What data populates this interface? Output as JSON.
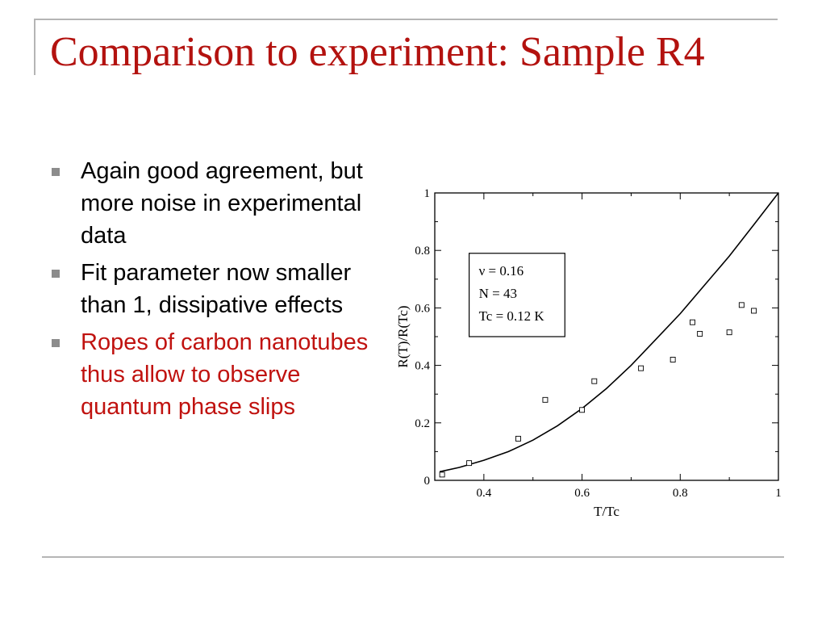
{
  "slide": {
    "title": "Comparison to experiment: Sample R4",
    "bullets": [
      {
        "text": "Again good agreement, but more noise in experimental data",
        "color": "#000000"
      },
      {
        "text": "Fit parameter now smaller than 1, dissipative effects",
        "color": "#000000"
      },
      {
        "text": "Ropes of carbon nanotubes thus allow to observe quantum phase slips",
        "color": "#c0120f"
      }
    ]
  },
  "chart_data": {
    "type": "scatter",
    "xlabel": "T/Tc",
    "ylabel": "R(T)/R(Tc)",
    "xlim": [
      0.3,
      1.0
    ],
    "ylim": [
      0,
      1.0
    ],
    "x_ticks": [
      "0.4",
      "0.6",
      "0.8",
      "1"
    ],
    "y_ticks": [
      "0",
      "0.2",
      "0.4",
      "0.6",
      "0.8",
      "1"
    ],
    "grid": false,
    "legend_box": [
      "ν = 0.16",
      "N = 43",
      "Tc = 0.12 K"
    ],
    "series": [
      {
        "style": "open-square-markers",
        "x": [
          0.315,
          0.37,
          0.47,
          0.525,
          0.6,
          0.625,
          0.72,
          0.785,
          0.825,
          0.84,
          0.9,
          0.925,
          0.95
        ],
        "y": [
          0.02,
          0.06,
          0.145,
          0.28,
          0.245,
          0.345,
          0.39,
          0.42,
          0.55,
          0.51,
          0.515,
          0.61,
          0.59
        ]
      },
      {
        "style": "solid-line",
        "x": [
          0.31,
          0.35,
          0.4,
          0.45,
          0.5,
          0.55,
          0.6,
          0.65,
          0.7,
          0.75,
          0.8,
          0.85,
          0.9,
          0.95,
          1.0
        ],
        "y": [
          0.03,
          0.045,
          0.07,
          0.1,
          0.14,
          0.19,
          0.25,
          0.32,
          0.4,
          0.49,
          0.58,
          0.68,
          0.78,
          0.89,
          1.0
        ]
      }
    ]
  }
}
